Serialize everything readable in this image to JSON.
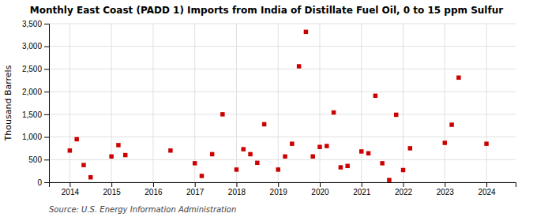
{
  "chart_data": {
    "type": "scatter",
    "title": "Monthly East Coast (PADD 1) Imports from India of Distillate Fuel Oil, 0 to 15 ppm Sulfur",
    "ylabel": "Thousand Barrels",
    "annotations": [
      "Source: U.S. Energy Information Administration"
    ],
    "color": "#cc0000",
    "marker": "square",
    "grid": true,
    "xlim": [
      2013.5,
      2024.7
    ],
    "xticks": [
      2014,
      2015,
      2016,
      2017,
      2018,
      2019,
      2020,
      2021,
      2022,
      2023,
      2024
    ],
    "ylim": [
      0,
      3500
    ],
    "yticks": [
      0,
      500,
      {
        "value": 1000,
        "label": "1,000"
      },
      {
        "value": 1500,
        "label": "1,500"
      },
      {
        "value": 2000,
        "label": "2,000"
      },
      {
        "value": 2500,
        "label": "2,500"
      },
      {
        "value": 3000,
        "label": "3,000"
      },
      {
        "value": 3500,
        "label": "3,500"
      }
    ],
    "x": [
      2014,
      2014.1666666666667,
      2014.3333333333333,
      2014.5,
      2015,
      2015.1666666666667,
      2015.3333333333333,
      2016.4166666666667,
      2017,
      2017.1666666666667,
      2017.4166666666667,
      2017.6666666666667,
      2018,
      2018.1666666666667,
      2018.3333333333333,
      2018.5,
      2018.6666666666667,
      2019,
      2019.1666666666667,
      2019.3333333333333,
      2019.5,
      2019.6666666666667,
      2019.8333333333333,
      2020,
      2020.1666666666667,
      2020.3333333333333,
      2020.5,
      2020.6666666666667,
      2021,
      2021.1666666666667,
      2021.3333333333333,
      2021.5,
      2021.6666666666667,
      2021.8333333333333,
      2022,
      2022.1666666666667,
      2023,
      2023.1666666666667,
      2023.3333333333333,
      2024
    ],
    "values": [
      700,
      950,
      380,
      110,
      570,
      820,
      600,
      700,
      420,
      140,
      620,
      1500,
      280,
      730,
      620,
      430,
      1280,
      280,
      570,
      850,
      2560,
      3320,
      570,
      780,
      800,
      1540,
      330,
      360,
      680,
      640,
      1910,
      420,
      50,
      1490,
      270,
      750,
      870,
      1270,
      2310,
      850
    ]
  }
}
